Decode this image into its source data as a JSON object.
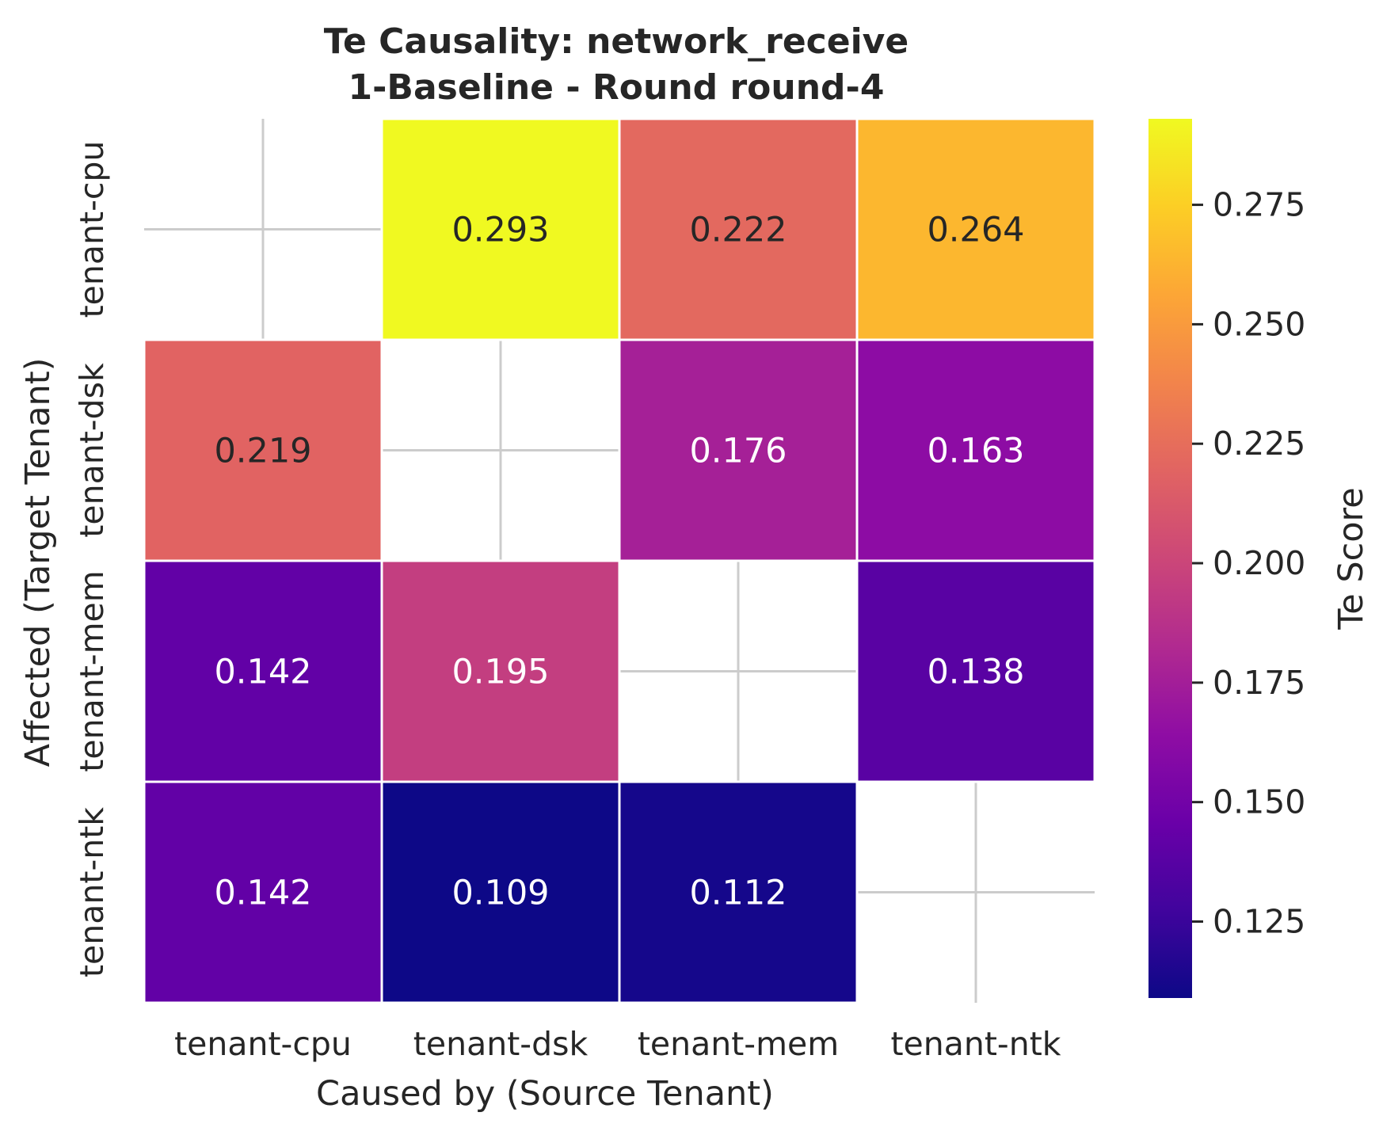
{
  "chart_data": {
    "type": "heatmap",
    "title": "Te Causality: network_receive",
    "subtitle": "1-Baseline - Round round-4",
    "xlabel": "Caused by (Source Tenant)",
    "ylabel": "Affected (Target Tenant)",
    "x_categories": [
      "tenant-cpu",
      "tenant-dsk",
      "tenant-mem",
      "tenant-ntk"
    ],
    "y_categories": [
      "tenant-cpu",
      "tenant-dsk",
      "tenant-mem",
      "tenant-ntk"
    ],
    "values": [
      [
        null,
        0.293,
        0.222,
        0.264
      ],
      [
        0.219,
        null,
        0.176,
        0.163
      ],
      [
        0.142,
        0.195,
        null,
        0.138
      ],
      [
        0.142,
        0.109,
        0.112,
        null
      ]
    ],
    "value_labels": [
      [
        "",
        "0.293",
        "0.222",
        "0.264"
      ],
      [
        "0.219",
        "",
        "0.176",
        "0.163"
      ],
      [
        "0.142",
        "0.195",
        "",
        "0.138"
      ],
      [
        "0.142",
        "0.109",
        "0.112",
        ""
      ]
    ],
    "colormap": "plasma",
    "colorbar": {
      "label": "Te Score",
      "range": [
        0.109,
        0.293
      ],
      "ticks": [
        0.125,
        0.15,
        0.175,
        0.2,
        0.225,
        0.25,
        0.275
      ],
      "tick_labels": [
        "0.125",
        "0.150",
        "0.175",
        "0.200",
        "0.225",
        "0.250",
        "0.275"
      ]
    },
    "grid": true
  }
}
